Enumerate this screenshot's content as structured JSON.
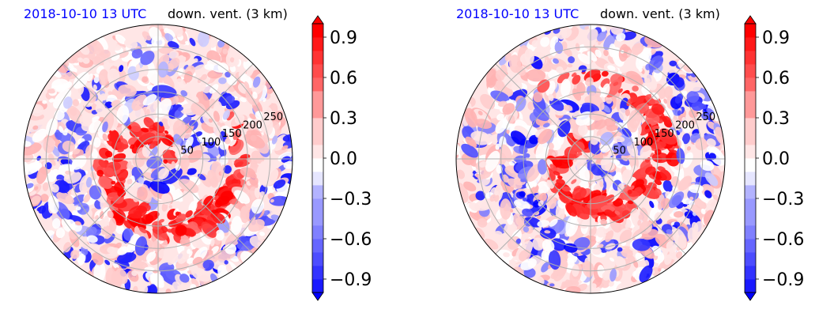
{
  "chart_data": [
    {
      "type": "heatmap",
      "projection": "polar",
      "title_left": "2018-10-10 13 UTC",
      "title_right": "down. vent. (3 km)",
      "radial_ticks": [
        "50",
        "100",
        "150",
        "200",
        "250"
      ],
      "radial_tick_values": [
        50,
        100,
        150,
        200,
        250
      ],
      "r_max": 300,
      "grid": true,
      "colorbar": {
        "cmap": "bwr",
        "range": [
          -1.0,
          1.0
        ],
        "ticks": [
          "0.9",
          "0.6",
          "0.3",
          "0.0",
          "−0.3",
          "−0.6",
          "−0.9"
        ],
        "tick_values": [
          0.9,
          0.6,
          0.3,
          0.0,
          -0.3,
          -0.6,
          -0.9
        ],
        "extend": "both"
      },
      "pattern": "spiral-bands",
      "seed": 7
    },
    {
      "type": "heatmap",
      "projection": "polar",
      "title_left": "2018-10-10 13 UTC",
      "title_right": "down. vent. (3 km)",
      "radial_ticks": [
        "50",
        "100",
        "150",
        "200",
        "250"
      ],
      "radial_tick_values": [
        50,
        100,
        150,
        200,
        250
      ],
      "r_max": 300,
      "grid": true,
      "colorbar": {
        "cmap": "bwr",
        "range": [
          -1.0,
          1.0
        ],
        "ticks": [
          "0.9",
          "0.6",
          "0.3",
          "0.0",
          "−0.3",
          "−0.6",
          "−0.9"
        ],
        "tick_values": [
          0.9,
          0.6,
          0.3,
          0.0,
          -0.3,
          -0.6,
          -0.9
        ],
        "extend": "both"
      },
      "pattern": "spiral-bands",
      "seed": 23
    }
  ],
  "colors": {
    "positive": "#ff0000",
    "negative": "#0000ff",
    "neutral": "#ffffff",
    "date_title": "#0000ff",
    "grid": "#b0b0b0"
  }
}
